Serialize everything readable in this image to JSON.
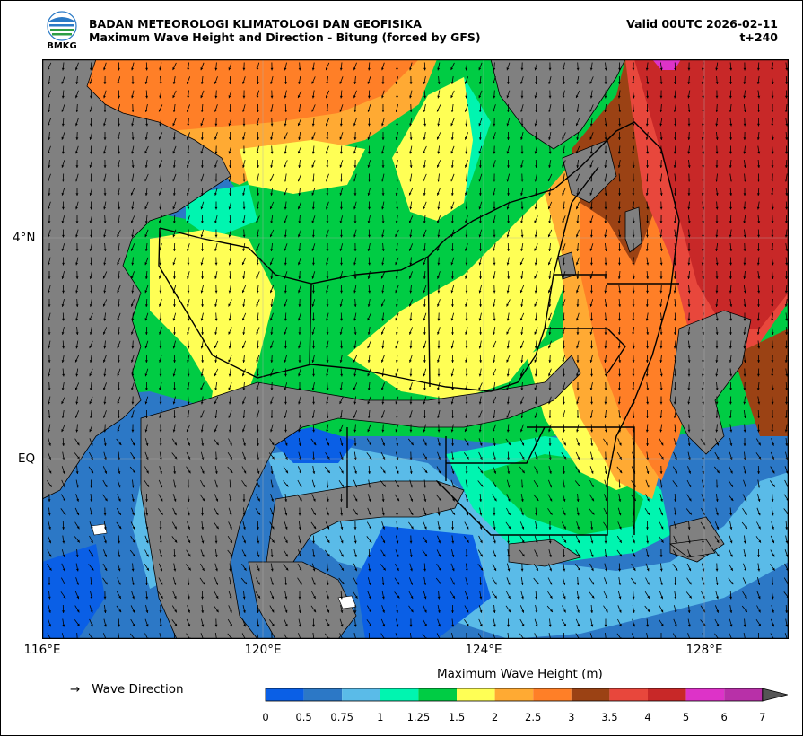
{
  "header": {
    "agency": "BADAN METEOROLOGI KLIMATOLOGI DAN GEOFISIKA",
    "subtitle": "Maximum Wave Height and Direction - Bitung (forced by GFS)",
    "valid": "Valid 00UTC 2026-02-11",
    "lead": "t+240",
    "logo_text": "BMKG"
  },
  "map": {
    "lon_labels": [
      "116°E",
      "120°E",
      "124°E",
      "128°E"
    ],
    "lat_labels": [
      "4°N",
      "EQ"
    ],
    "land_color": "#808080",
    "ocean_default": "#00cc44",
    "arrow_color": "#000000"
  },
  "legend": {
    "direction_label": "Wave Direction",
    "direction_symbol": "→",
    "colorbar_title": "Maximum Wave Height (m)",
    "ticks": [
      "0",
      "0.5",
      "0.75",
      "1",
      "1.25",
      "1.5",
      "2",
      "2.5",
      "3",
      "3.5",
      "4",
      "5",
      "6",
      "7"
    ],
    "colors": [
      "#0a5fe6",
      "#2c78c6",
      "#5abbe8",
      "#00f5b0",
      "#00cc44",
      "#ffff55",
      "#ffaa33",
      "#ff7f27",
      "#9b4214",
      "#e8473c",
      "#c82828",
      "#dd33c8",
      "#b830a8"
    ],
    "overflow_color": "#555555"
  }
}
